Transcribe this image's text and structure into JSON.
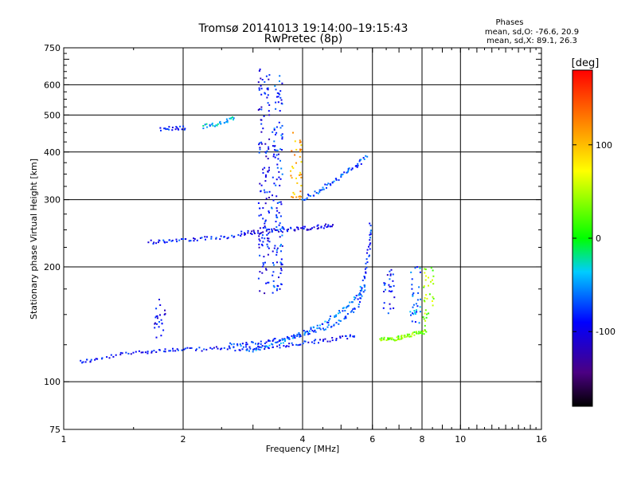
{
  "chart_data": {
    "type": "scatter",
    "title": "Tromsø 20141013 19:14:00–19:15:43",
    "subtitle": "RwPretec (8p)",
    "xlabel": "Frequency [MHz]",
    "ylabel": "Stationary phase Virtual Height [km]",
    "x_scale": "log2",
    "y_scale": "log",
    "xlim": [
      1,
      16
    ],
    "ylim": [
      75,
      750
    ],
    "x_ticks": [
      1,
      2,
      4,
      6,
      8,
      10,
      16
    ],
    "x_tick_labels": [
      "1",
      "2",
      "4",
      "6",
      "8",
      "10",
      "16"
    ],
    "x_grid": [
      2,
      4,
      6,
      8,
      10
    ],
    "y_ticks": [
      75,
      100,
      200,
      300,
      400,
      500,
      600,
      750
    ],
    "y_tick_labels": [
      "75",
      "100",
      "200",
      "300",
      "400",
      "500",
      "600",
      "750"
    ],
    "y_grid": [
      100,
      200,
      300,
      400,
      500,
      600
    ],
    "grid": true,
    "stats": {
      "header": "Phases",
      "o_line": "mean, sd,O: -76.6, 20.9",
      "x_line": "mean, sd,X: 89.1, 26.3"
    },
    "colorbar": {
      "label": "[deg]",
      "range": [
        -180,
        180
      ],
      "ticks": [
        100,
        0,
        -100
      ],
      "tick_labels": [
        "100",
        "0",
        "-100"
      ],
      "colormap": "rainbow"
    },
    "traces": [
      {
        "x": [
          1.1,
          1.2,
          1.4,
          1.6,
          1.8,
          2.0,
          2.3,
          2.6,
          2.9,
          3.2,
          3.6,
          4.0,
          4.5,
          5.0,
          5.5
        ],
        "y": [
          113,
          114,
          118,
          120,
          121,
          121,
          122,
          122,
          122,
          123,
          124,
          126,
          128,
          130,
          132
        ],
        "phase": -90
      },
      {
        "x": [
          2.6,
          2.9,
          3.2,
          3.5,
          3.9,
          4.3,
          4.7,
          5.1,
          5.5,
          5.7,
          5.8,
          5.9,
          5.95
        ],
        "y": [
          125,
          126,
          127,
          129,
          132,
          136,
          140,
          146,
          158,
          175,
          200,
          230,
          260
        ],
        "phase": -75
      },
      {
        "x": [
          2.9,
          3.2,
          3.5,
          3.8,
          4.1,
          4.5,
          4.9,
          5.2,
          5.5,
          5.7
        ],
        "y": [
          120,
          123,
          127,
          131,
          136,
          142,
          150,
          158,
          168,
          180
        ],
        "phase": -60
      },
      {
        "x": [
          1.65,
          1.8,
          2.0,
          2.2,
          2.5,
          2.8
        ],
        "y": [
          232,
          234,
          236,
          237,
          238,
          240
        ],
        "phase": -85
      },
      {
        "x": [
          2.8,
          3.0,
          3.3,
          3.6,
          3.9,
          4.2,
          4.5,
          4.8
        ],
        "y": [
          245,
          246,
          248,
          250,
          252,
          253,
          255,
          258
        ],
        "phase": -100
      },
      {
        "x": [
          4.0,
          4.3,
          4.6,
          4.9,
          5.2,
          5.5,
          5.8
        ],
        "y": [
          300,
          312,
          325,
          340,
          355,
          370,
          390
        ],
        "phase": -70
      },
      {
        "x": [
          1.75,
          1.9,
          2.05
        ],
        "y": [
          460,
          462,
          463
        ],
        "phase": -85
      },
      {
        "x": [
          2.25,
          2.4,
          2.55,
          2.7
        ],
        "y": [
          465,
          472,
          480,
          490
        ],
        "phase": -40
      },
      {
        "x": [
          6.3,
          6.6,
          6.9,
          7.2,
          7.5,
          7.9,
          8.2
        ],
        "y": [
          130,
          129,
          130,
          131,
          133,
          134,
          136
        ],
        "phase": 35
      }
    ],
    "columns": [
      {
        "x": 3.2,
        "y": [
          170,
          660
        ],
        "phase": -95
      },
      {
        "x": 3.45,
        "y": [
          170,
          640
        ],
        "phase": -80
      },
      {
        "x": 3.85,
        "y": [
          300,
          450
        ],
        "phase": 110
      },
      {
        "x": 1.75,
        "y": [
          130,
          165
        ],
        "phase": -90
      },
      {
        "x": 6.6,
        "y": [
          150,
          200
        ],
        "phase": -90
      },
      {
        "x": 7.7,
        "y": [
          140,
          200
        ],
        "phase": -60
      },
      {
        "x": 8.3,
        "y": [
          140,
          200
        ],
        "phase": 40
      }
    ]
  }
}
